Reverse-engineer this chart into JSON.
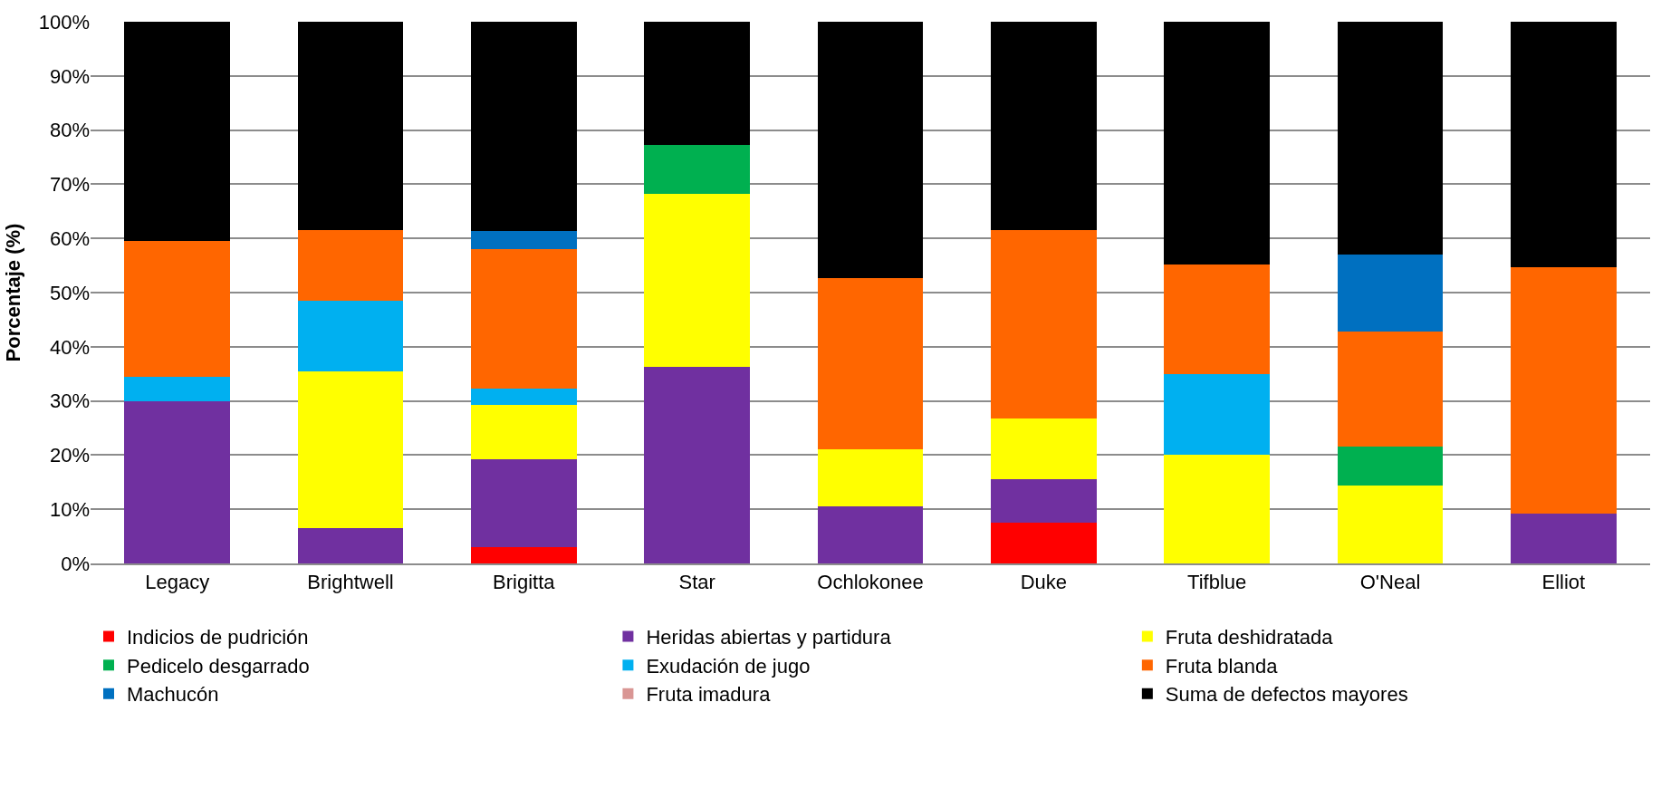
{
  "chart_data": {
    "type": "bar",
    "stacked": true,
    "ylabel": "Porcentaje (%)",
    "categories": [
      "Legacy",
      "Brightwell",
      "Brigitta",
      "Star",
      "Ochlokonee",
      "Duke",
      "Tifblue",
      "O'Neal",
      "Elliot"
    ],
    "series": [
      {
        "name": "Indicios de pudrición",
        "color": "#ff0000",
        "values": [
          0,
          0,
          3,
          0,
          0,
          7.6,
          0,
          0,
          0
        ]
      },
      {
        "name": "Heridas abiertas y partidura",
        "color": "#7030a0",
        "values": [
          30,
          6.5,
          16.3,
          36.3,
          10.5,
          7.9,
          0,
          0,
          9.2
        ]
      },
      {
        "name": "Fruta deshidratada",
        "color": "#ffff00",
        "values": [
          0,
          29,
          9.9,
          32,
          10.5,
          11.3,
          20,
          14.4,
          0
        ]
      },
      {
        "name": "Pedicelo desgarrado",
        "color": "#00b050",
        "values": [
          0,
          0,
          0,
          9,
          0,
          0,
          0,
          7.1,
          0
        ]
      },
      {
        "name": "Exudación de jugo",
        "color": "#00b0f0",
        "values": [
          4.5,
          13,
          3.1,
          0,
          0,
          0,
          15,
          0,
          0
        ]
      },
      {
        "name": "Fruta blanda",
        "color": "#ff6600",
        "values": [
          25,
          13,
          25.7,
          0,
          31.7,
          34.8,
          20.2,
          21.3,
          45.5
        ]
      },
      {
        "name": "Machucón",
        "color": "#0070c0",
        "values": [
          0,
          0,
          3.4,
          0,
          0,
          0,
          0,
          14.3,
          0
        ]
      },
      {
        "name": "Fruta imadura",
        "color": "#d99694",
        "values": [
          0,
          0,
          0,
          0,
          0,
          0,
          0,
          0,
          0
        ]
      },
      {
        "name": "Suma de defectos mayores",
        "color": "#000000",
        "values": [
          40.5,
          38.5,
          38.6,
          22.7,
          47.3,
          38.4,
          44.8,
          42.9,
          45.3
        ]
      }
    ],
    "ylim": [
      0,
      100
    ],
    "yticks": [
      {
        "value": 0,
        "label": "0%"
      },
      {
        "value": 10,
        "label": "10%"
      },
      {
        "value": 20,
        "label": "20%"
      },
      {
        "value": 30,
        "label": "30%"
      },
      {
        "value": 40,
        "label": "40%"
      },
      {
        "value": 50,
        "label": "50%"
      },
      {
        "value": 60,
        "label": "60%"
      },
      {
        "value": 70,
        "label": "70%"
      },
      {
        "value": 80,
        "label": "80%"
      },
      {
        "value": 90,
        "label": "90%"
      },
      {
        "value": 100,
        "label": "100%"
      }
    ],
    "grid": "y",
    "legend": "bottom"
  }
}
